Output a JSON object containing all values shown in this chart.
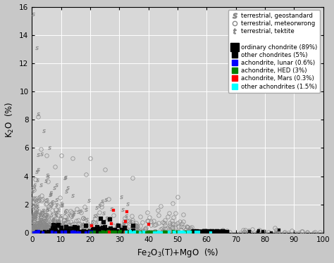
{
  "xlim": [
    0,
    100
  ],
  "ylim": [
    0,
    16
  ],
  "xticks": [
    0,
    10,
    20,
    30,
    40,
    50,
    60,
    70,
    80,
    90,
    100
  ],
  "yticks": [
    0,
    2,
    4,
    6,
    8,
    10,
    12,
    14,
    16
  ],
  "ax_facecolor": "#d8d8d8",
  "fig_facecolor": "#c8c8c8",
  "grid_color": "#ffffff",
  "seed": 42,
  "geo_n": 200,
  "met_n": 400,
  "tek_n": 35,
  "oc_n": 200,
  "ochond_n": 35,
  "lunar_n": 25,
  "hed_n": 55,
  "mars_n": 8,
  "otherach_n": 28
}
